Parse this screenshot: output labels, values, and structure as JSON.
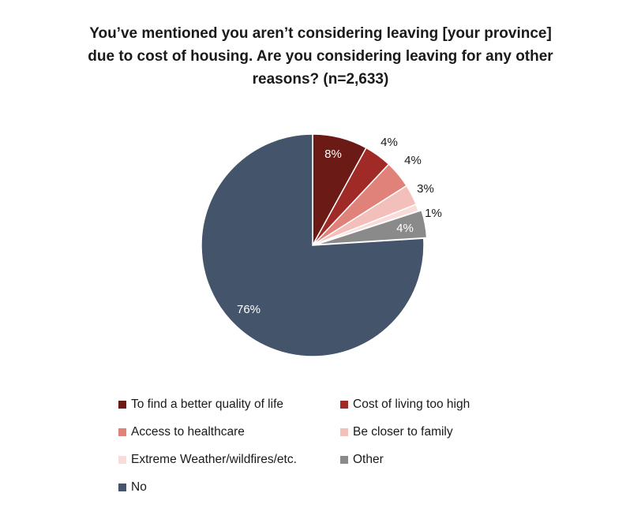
{
  "chart_data": {
    "type": "pie",
    "title": "You’ve mentioned you aren’t considering leaving [your province] due to cost of housing. Are you considering leaving for any other reasons? (n=2,633)",
    "title_lines": [
      "You’ve mentioned you aren’t considering leaving [your province]",
      "due to cost of housing. Are you considering leaving for any other",
      "reasons? (n=2,633)"
    ],
    "slices": [
      {
        "label": "To find a better quality of life",
        "value": 8,
        "display": "8%",
        "color": "#6b1a16"
      },
      {
        "label": "Cost of living too high",
        "value": 4,
        "display": "4%",
        "color": "#a02a25"
      },
      {
        "label": "Access to healthcare",
        "value": 4,
        "display": "4%",
        "color": "#e0817a"
      },
      {
        "label": "Be closer to family",
        "value": 3,
        "display": "3%",
        "color": "#f2bfbb"
      },
      {
        "label": "Extreme Weather/wildfires/etc.",
        "value": 1,
        "display": "1%",
        "color": "#f9dcda"
      },
      {
        "label": "Other",
        "value": 4,
        "display": "4%",
        "color": "#8a8a8a"
      },
      {
        "label": "No",
        "value": 76,
        "display": "76%",
        "color": "#44546a"
      }
    ],
    "legend_placement": "bottom"
  }
}
